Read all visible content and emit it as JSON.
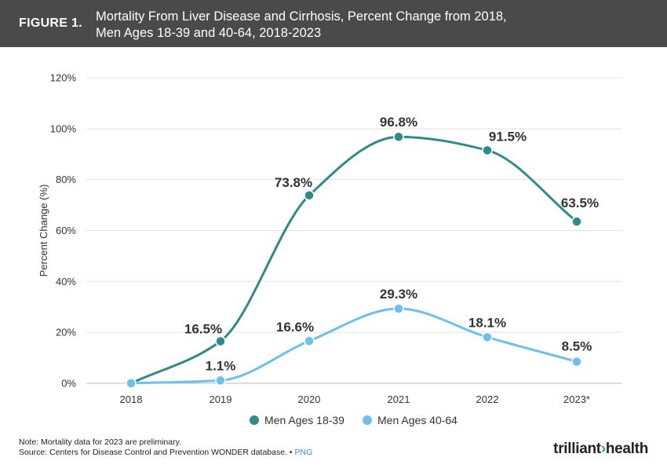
{
  "header": {
    "figure_label": "FIGURE 1.",
    "title_line1": "Mortality From Liver Disease and Cirrhosis, Percent Change from 2018,",
    "title_line2": "Men Ages 18-39 and 40-64, 2018-2023"
  },
  "chart_data": {
    "type": "line",
    "categories": [
      "2018",
      "2019",
      "2020",
      "2021",
      "2022",
      "2023*"
    ],
    "series": [
      {
        "name": "Men Ages 18-39",
        "color": "#2e8b87",
        "values": [
          0,
          16.5,
          73.8,
          96.8,
          91.5,
          63.5
        ],
        "labels": [
          "",
          "16.5%",
          "73.8%",
          "96.8%",
          "91.5%",
          "63.5%"
        ]
      },
      {
        "name": "Men Ages 40-64",
        "color": "#6cc0ef",
        "values": [
          0,
          1.1,
          16.6,
          29.3,
          18.1,
          8.5
        ],
        "labels": [
          "",
          "1.1%",
          "16.6%",
          "29.3%",
          "18.1%",
          "8.5%"
        ]
      }
    ],
    "ylabel": "Percent Change (%)",
    "ylim": [
      0,
      120
    ],
    "yticks": [
      0,
      20,
      40,
      60,
      80,
      100,
      120
    ],
    "ytick_labels": [
      "0%",
      "20%",
      "40%",
      "60%",
      "80%",
      "100%",
      "120%"
    ],
    "grid": true,
    "legend": "bottom-center"
  },
  "legend": {
    "item1": "Men Ages 18-39",
    "item2": "Men Ages 40-64"
  },
  "footer": {
    "note": "Note: Mortality data for 2023 are preliminary.",
    "source": "Source: Centers for Disease Control and Prevention WONDER database.",
    "separator": "•",
    "png_link": "PNG",
    "logo_part1": "trilliant",
    "logo_part2": "health"
  }
}
